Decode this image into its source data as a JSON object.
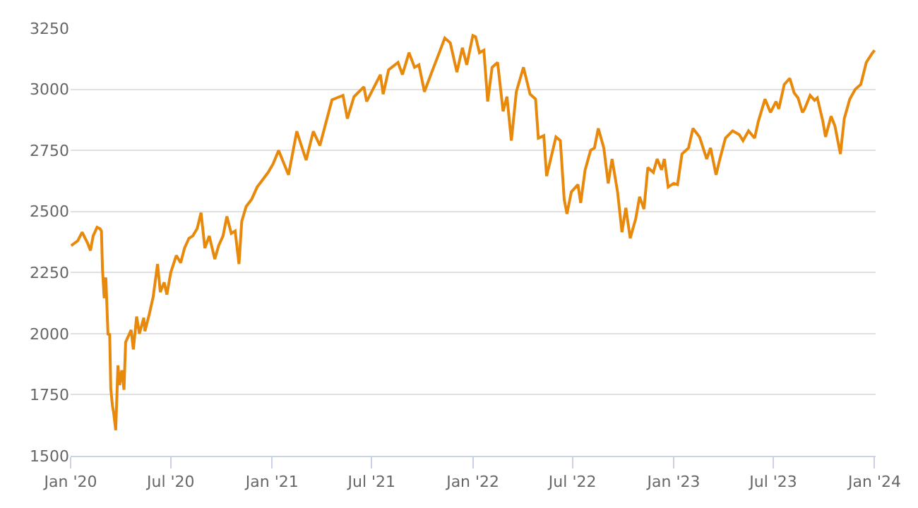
{
  "chart_data": {
    "type": "line",
    "color": "#e8890c",
    "grid": "y",
    "legend": false,
    "marker": "none",
    "line_style": "solid",
    "xlim": [
      "2020-01-01",
      "2024-01-03"
    ],
    "ylim": [
      1500,
      3250
    ],
    "yticks": [
      1500,
      1750,
      2000,
      2250,
      2500,
      2750,
      3000,
      3250
    ],
    "xticks": [
      {
        "value": "2020-01-01",
        "label": "Jan '20"
      },
      {
        "value": "2020-07-01",
        "label": "Jul '20"
      },
      {
        "value": "2021-01-01",
        "label": "Jan '21"
      },
      {
        "value": "2021-07-01",
        "label": "Jul '21"
      },
      {
        "value": "2022-01-01",
        "label": "Jan '22"
      },
      {
        "value": "2022-07-01",
        "label": "Jul '22"
      },
      {
        "value": "2023-01-01",
        "label": "Jan '23"
      },
      {
        "value": "2023-07-01",
        "label": "Jul '23"
      },
      {
        "value": "2024-01-01",
        "label": "Jan '24"
      }
    ],
    "x": [
      "2020-01-02",
      "2020-01-14",
      "2020-01-22",
      "2020-02-01",
      "2020-02-06",
      "2020-02-11",
      "2020-02-18",
      "2020-02-23",
      "2020-02-26",
      "2020-02-28",
      "2020-03-02",
      "2020-03-05",
      "2020-03-09",
      "2020-03-12",
      "2020-03-14",
      "2020-03-17",
      "2020-03-19",
      "2020-03-23",
      "2020-03-27",
      "2020-03-30",
      "2020-04-03",
      "2020-04-07",
      "2020-04-10",
      "2020-04-15",
      "2020-04-20",
      "2020-04-24",
      "2020-04-30",
      "2020-05-05",
      "2020-05-13",
      "2020-05-15",
      "2020-05-23",
      "2020-05-30",
      "2020-06-07",
      "2020-06-12",
      "2020-06-19",
      "2020-06-24",
      "2020-07-01",
      "2020-07-11",
      "2020-07-19",
      "2020-07-26",
      "2020-08-03",
      "2020-08-10",
      "2020-08-18",
      "2020-08-25",
      "2020-09-01",
      "2020-09-09",
      "2020-09-19",
      "2020-09-26",
      "2020-10-04",
      "2020-10-11",
      "2020-10-19",
      "2020-10-26",
      "2020-11-02",
      "2020-11-07",
      "2020-11-15",
      "2020-11-25",
      "2020-12-05",
      "2020-12-15",
      "2020-12-25",
      "2021-01-03",
      "2021-01-13",
      "2021-01-31",
      "2021-02-15",
      "2021-03-04",
      "2021-03-17",
      "2021-03-29",
      "2021-04-20",
      "2021-05-10",
      "2021-05-18",
      "2021-05-30",
      "2021-06-17",
      "2021-06-22",
      "2021-07-17",
      "2021-07-22",
      "2021-08-01",
      "2021-08-18",
      "2021-08-26",
      "2021-09-07",
      "2021-09-17",
      "2021-09-25",
      "2021-10-05",
      "2021-10-20",
      "2021-11-01",
      "2021-11-11",
      "2021-11-21",
      "2021-12-03",
      "2021-12-13",
      "2021-12-21",
      "2022-01-01",
      "2022-01-06",
      "2022-01-13",
      "2022-01-21",
      "2022-01-28",
      "2022-02-05",
      "2022-02-15",
      "2022-02-25",
      "2022-03-04",
      "2022-03-12",
      "2022-03-21",
      "2022-04-03",
      "2022-04-15",
      "2022-04-25",
      "2022-04-30",
      "2022-05-10",
      "2022-05-15",
      "2022-05-22",
      "2022-06-01",
      "2022-06-09",
      "2022-06-16",
      "2022-06-21",
      "2022-06-29",
      "2022-07-11",
      "2022-07-16",
      "2022-07-24",
      "2022-08-03",
      "2022-08-10",
      "2022-08-17",
      "2022-08-27",
      "2022-09-04",
      "2022-09-11",
      "2022-09-21",
      "2022-09-29",
      "2022-10-06",
      "2022-10-14",
      "2022-10-24",
      "2022-10-31",
      "2022-11-08",
      "2022-11-15",
      "2022-11-25",
      "2022-12-02",
      "2022-12-10",
      "2022-12-15",
      "2022-12-22",
      "2023-01-01",
      "2023-01-08",
      "2023-01-16",
      "2023-01-28",
      "2023-02-05",
      "2023-02-17",
      "2023-03-02",
      "2023-03-09",
      "2023-03-19",
      "2023-03-26",
      "2023-04-05",
      "2023-04-18",
      "2023-04-30",
      "2023-05-07",
      "2023-05-17",
      "2023-05-28",
      "2023-06-04",
      "2023-06-16",
      "2023-06-26",
      "2023-07-06",
      "2023-07-11",
      "2023-07-21",
      "2023-07-31",
      "2023-08-08",
      "2023-08-15",
      "2023-08-23",
      "2023-08-27",
      "2023-09-06",
      "2023-09-14",
      "2023-09-19",
      "2023-09-29",
      "2023-10-04",
      "2023-10-14",
      "2023-10-21",
      "2023-10-31",
      "2023-11-07",
      "2023-11-17",
      "2023-11-27",
      "2023-12-07",
      "2023-12-17",
      "2023-12-27",
      "2024-01-01"
    ],
    "values": [
      2360,
      2380,
      2415,
      2370,
      2340,
      2400,
      2435,
      2430,
      2420,
      2260,
      2145,
      2230,
      1995,
      2000,
      1775,
      1705,
      1680,
      1605,
      1870,
      1790,
      1850,
      1770,
      1965,
      1990,
      2015,
      1935,
      2070,
      2000,
      2065,
      2010,
      2080,
      2150,
      2285,
      2170,
      2210,
      2160,
      2250,
      2320,
      2290,
      2350,
      2390,
      2400,
      2430,
      2495,
      2350,
      2400,
      2305,
      2360,
      2400,
      2480,
      2410,
      2420,
      2285,
      2460,
      2520,
      2550,
      2600,
      2630,
      2660,
      2695,
      2750,
      2650,
      2828,
      2710,
      2828,
      2770,
      2957,
      2975,
      2880,
      2970,
      3010,
      2950,
      3060,
      2980,
      3080,
      3110,
      3060,
      3150,
      3090,
      3100,
      2990,
      3080,
      3150,
      3210,
      3190,
      3070,
      3170,
      3100,
      3220,
      3215,
      3150,
      3160,
      2950,
      3090,
      3110,
      2910,
      2970,
      2790,
      2990,
      3090,
      2980,
      2960,
      2800,
      2810,
      2645,
      2710,
      2805,
      2790,
      2550,
      2490,
      2580,
      2610,
      2535,
      2670,
      2750,
      2760,
      2840,
      2760,
      2615,
      2715,
      2580,
      2415,
      2515,
      2390,
      2470,
      2560,
      2510,
      2680,
      2660,
      2715,
      2670,
      2715,
      2600,
      2615,
      2610,
      2735,
      2760,
      2840,
      2805,
      2715,
      2760,
      2650,
      2715,
      2800,
      2830,
      2815,
      2790,
      2830,
      2800,
      2870,
      2960,
      2905,
      2950,
      2920,
      3020,
      3045,
      2985,
      2965,
      2905,
      2920,
      2975,
      2955,
      2965,
      2870,
      2805,
      2890,
      2850,
      2735,
      2880,
      2960,
      3000,
      3020,
      3110,
      3145,
      3160
    ]
  }
}
